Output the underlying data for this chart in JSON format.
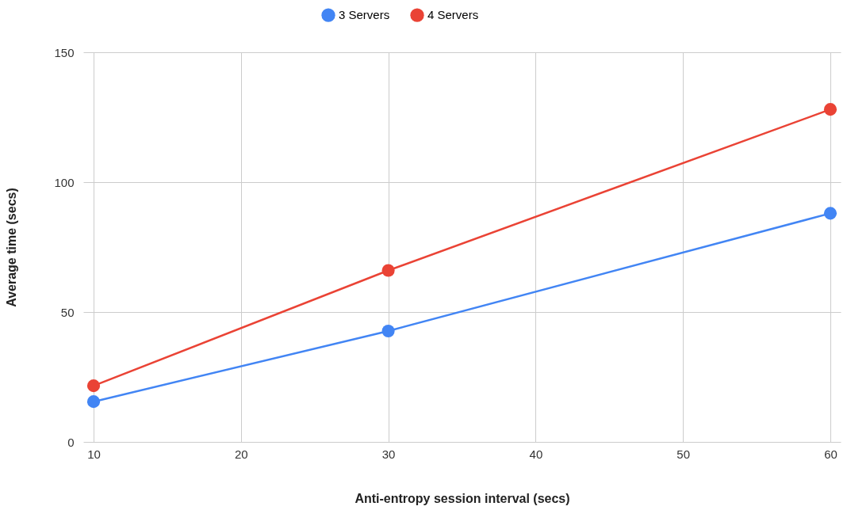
{
  "chart_data": {
    "type": "line",
    "xlabel": "Anti-entropy session interval (secs)",
    "ylabel": "Average time (secs)",
    "x": [
      10,
      30,
      60
    ],
    "series": [
      {
        "name": "3 Servers",
        "color": "#4285f4",
        "values": [
          15.5,
          42.7,
          88
        ]
      },
      {
        "name": "4 Servers",
        "color": "#ea4335",
        "values": [
          21.6,
          66,
          128
        ]
      }
    ],
    "xlim": [
      9.3,
      60.7
    ],
    "xticks": [
      10,
      20,
      30,
      40,
      50,
      60
    ],
    "ylim": [
      0,
      150
    ],
    "yticks": [
      0,
      50,
      100,
      150
    ],
    "grid": true,
    "legend": "top",
    "marker": "circle",
    "line_style": "solid"
  }
}
